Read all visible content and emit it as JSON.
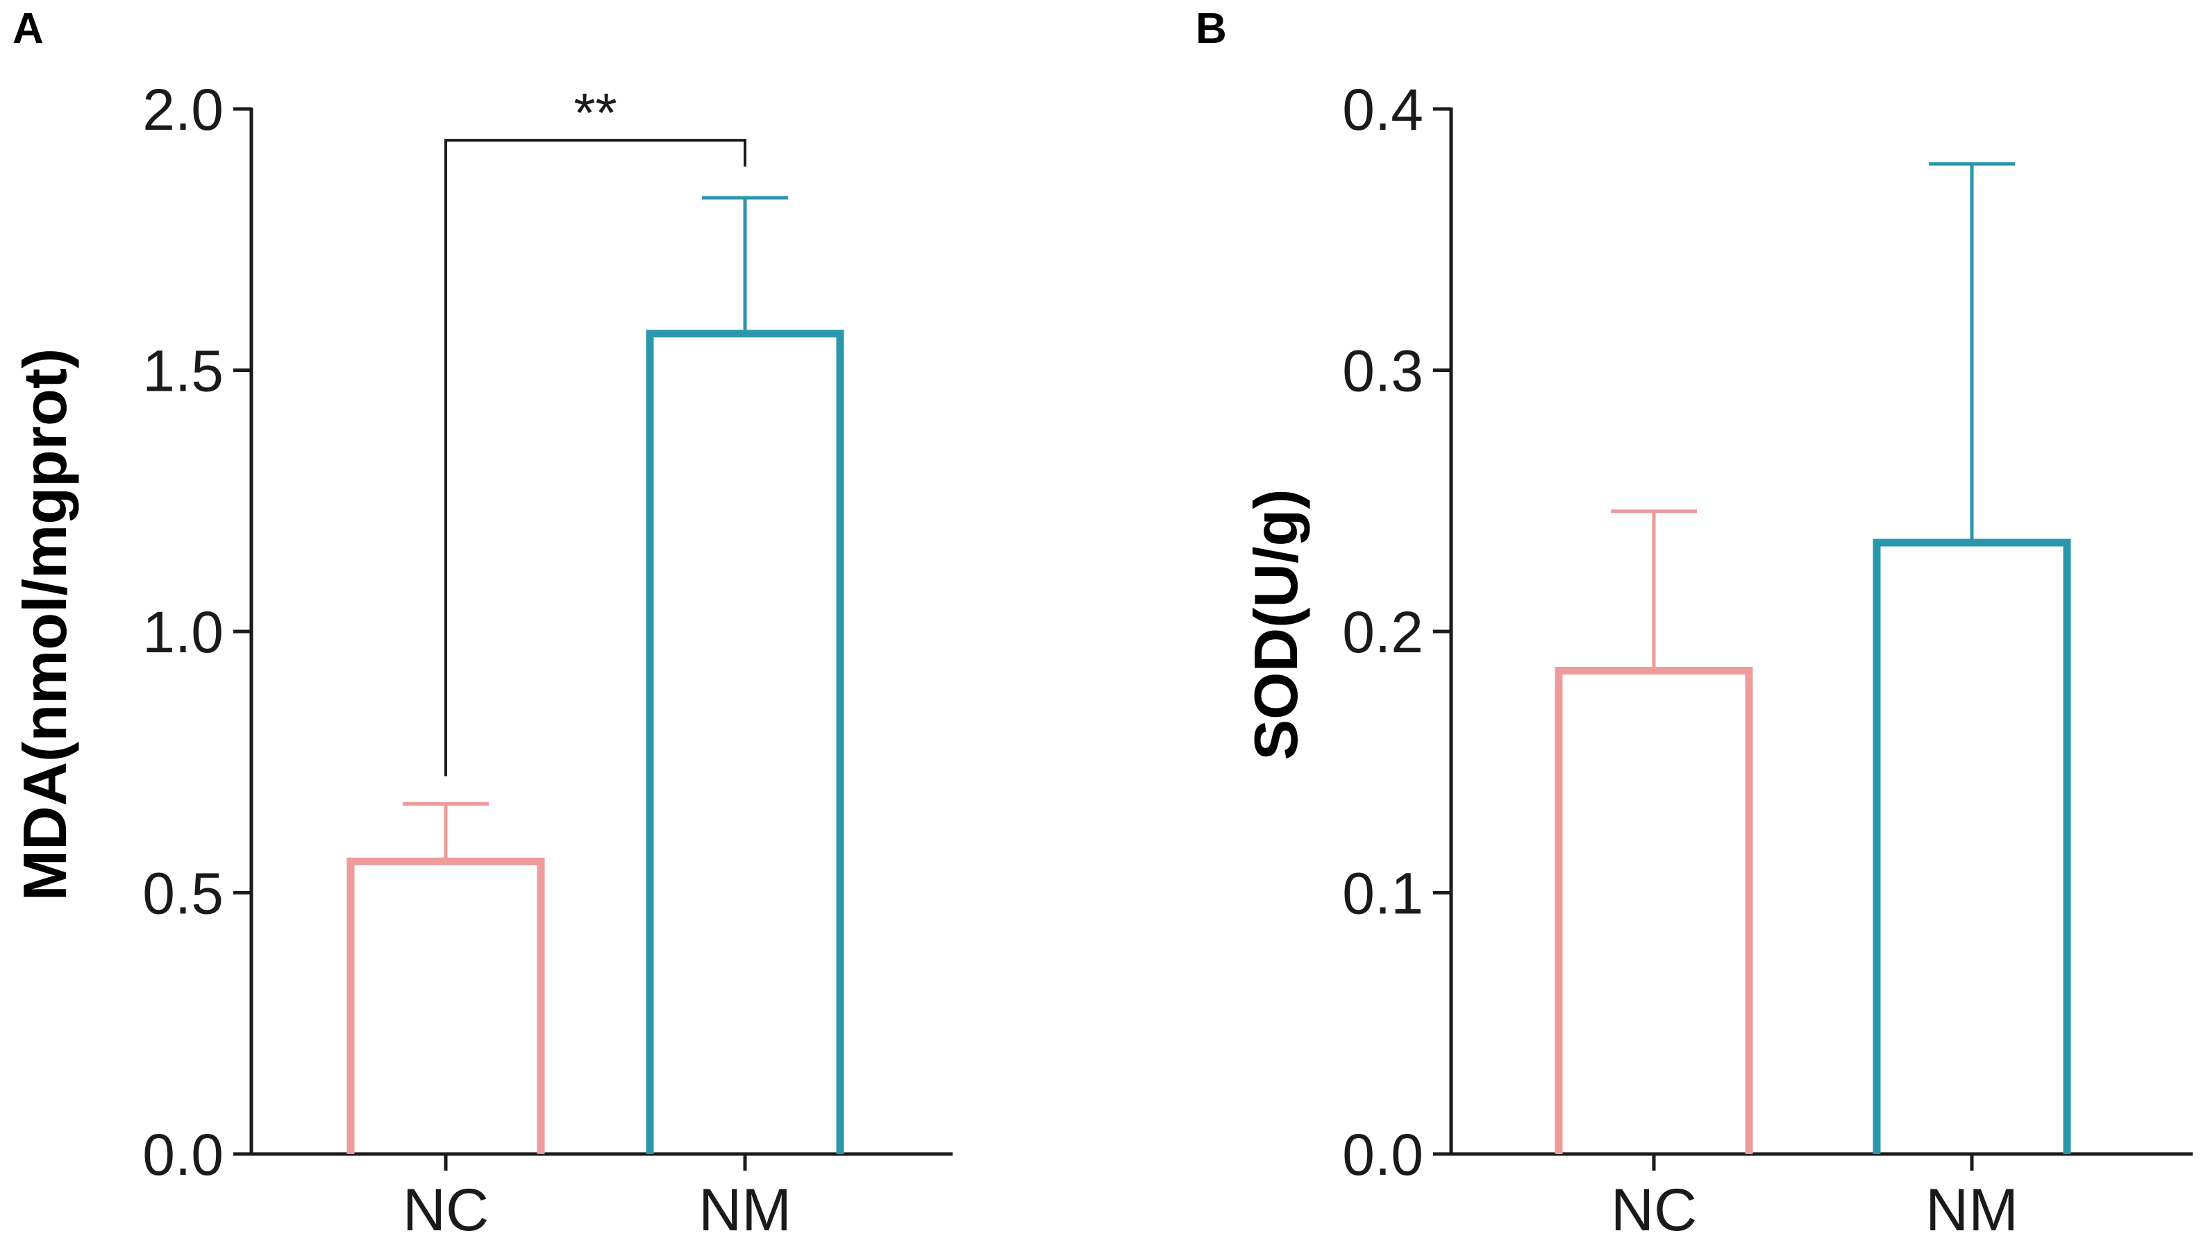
{
  "chart_data": [
    {
      "type": "bar",
      "panel": "A",
      "ylabel": "MDA(nmol/mgprot)",
      "xlabel": "",
      "ylim": [
        0,
        2.0
      ],
      "yticks": [
        0.0,
        0.5,
        1.0,
        1.5,
        2.0
      ],
      "ytick_labels": [
        "0.0",
        "0.5",
        "1.0",
        "1.5",
        "2.0"
      ],
      "categories": [
        "NC",
        "NM"
      ],
      "values": [
        0.56,
        1.57
      ],
      "errors": [
        0.11,
        0.26
      ],
      "colors": [
        "#ee9b9b",
        "#2a97ad"
      ],
      "bar_style": "outline",
      "significance": {
        "between": [
          0,
          1
        ],
        "label": "**",
        "y": 1.94
      }
    },
    {
      "type": "bar",
      "panel": "B",
      "ylabel": "SOD(U/g)",
      "xlabel": "",
      "ylim": [
        0,
        0.4
      ],
      "yticks": [
        0.0,
        0.1,
        0.2,
        0.3,
        0.4
      ],
      "ytick_labels": [
        "0.0",
        "0.1",
        "0.2",
        "0.3",
        "0.4"
      ],
      "categories": [
        "NC",
        "NM"
      ],
      "values": [
        0.185,
        0.234
      ],
      "errors": [
        0.061,
        0.145
      ],
      "colors": [
        "#ee9b9b",
        "#2a97ad"
      ],
      "bar_style": "outline"
    }
  ]
}
